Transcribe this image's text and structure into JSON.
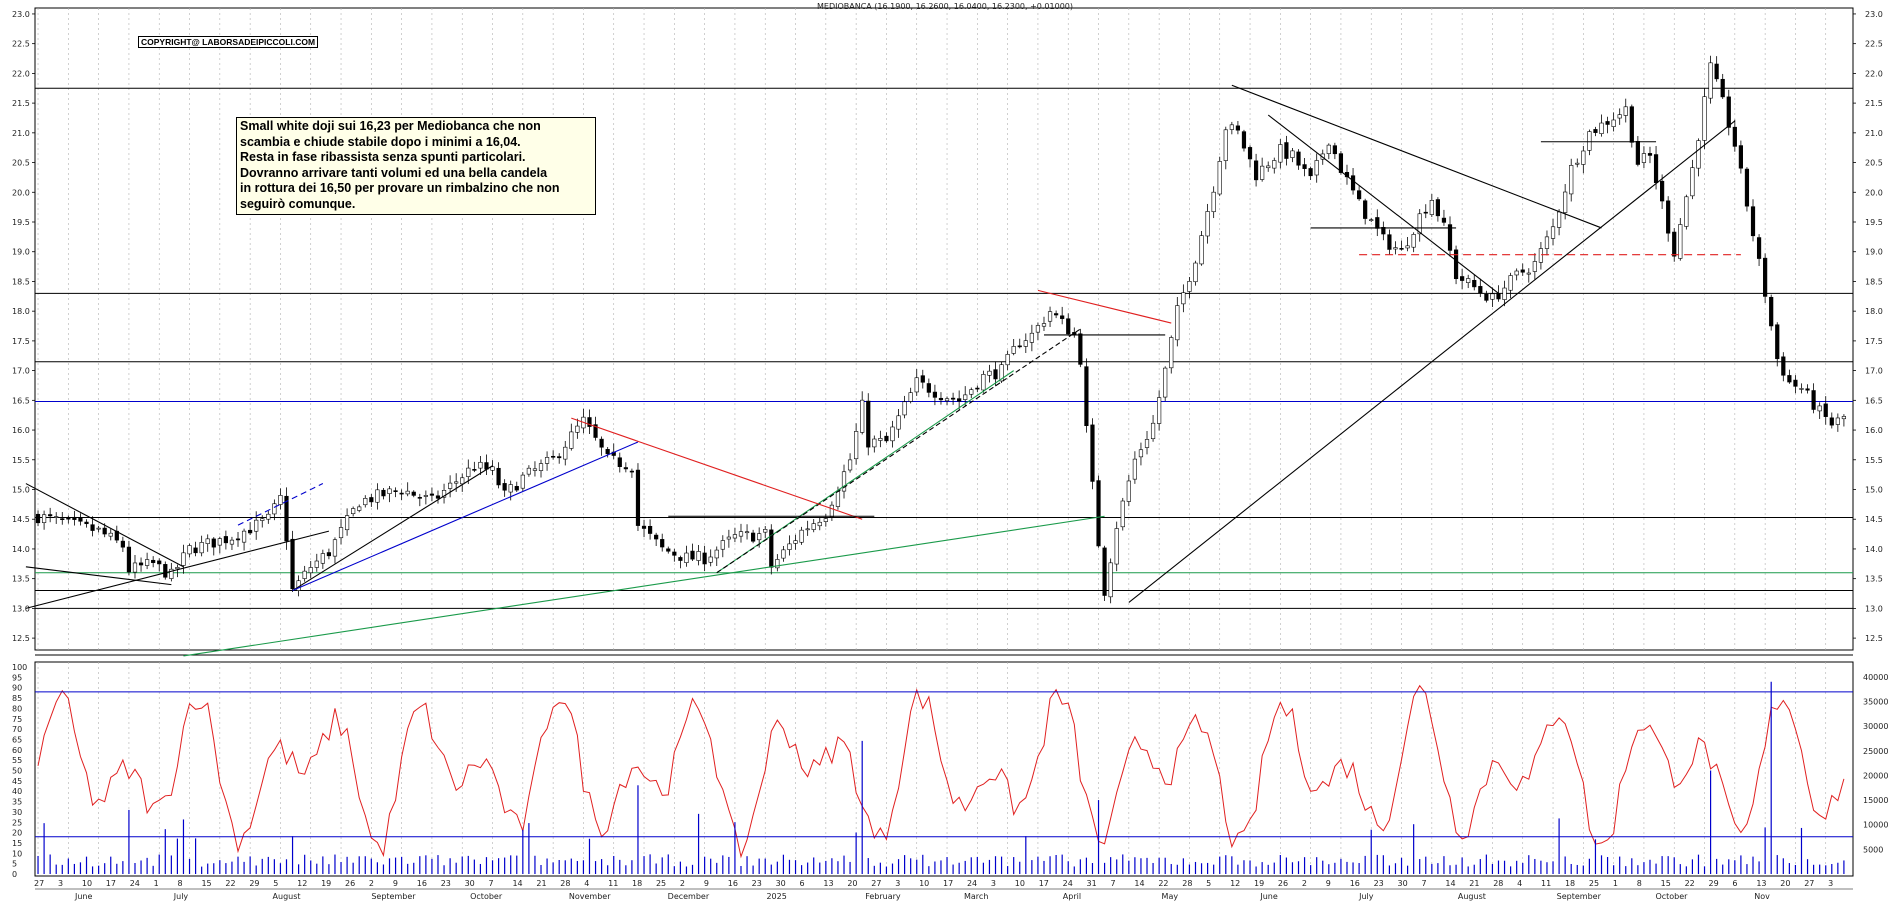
{
  "header": {
    "title": "MEDIOBANCA (16.1900, 16.2600, 16.0400, 16.2300, +0.01000)",
    "copyright": "COPYRIGHT@ LABORSADEIPICCOLI.COM"
  },
  "comment": {
    "lines": [
      "Small white doji sui 16,23 per Mediobanca che non",
      "scambia e chiude stabile dopo i minimi a 16,04.",
      "Resta in fase ribassista senza spunti particolari.",
      "Dovranno arrivare tanti volumi ed una bella candela",
      "in rottura dei 16,50 per provare un rimbalzino che non",
      "seguirò comunque."
    ]
  },
  "colors": {
    "up_candle": "#ffffff",
    "down_candle": "#000000",
    "support_line": "#000000",
    "horizontal_blue": "#0000cc",
    "trend_green": "#1a9a4a",
    "trend_red": "#e02020",
    "oscillator": "#e02020",
    "volume": "#0000cc",
    "grid": "#b0b0b0"
  },
  "chart_data": [
    {
      "type": "candlestick",
      "title": "MEDIOBANCA (16.1900, 16.2600, 16.0400, 16.2300, +0.01000)",
      "ylim": [
        12.3,
        23.1
      ],
      "y_ticks": [
        "23.0",
        "22.5",
        "22.0",
        "21.5",
        "21.0",
        "20.5",
        "20.0",
        "19.5",
        "19.0",
        "18.5",
        "18.0",
        "17.5",
        "17.0",
        "16.5",
        "16.0",
        "15.5",
        "15.0",
        "14.5",
        "14.0",
        "13.5",
        "13.0",
        "12.5"
      ],
      "last_candle": {
        "open": 16.19,
        "high": 16.26,
        "low": 16.04,
        "close": 16.23,
        "change": 0.01
      },
      "price_path": [
        [
          0,
          14.55
        ],
        [
          10,
          14.3
        ],
        [
          14,
          14.05
        ],
        [
          15,
          13.65
        ],
        [
          19,
          13.75
        ],
        [
          22,
          13.55
        ],
        [
          25,
          14.0
        ],
        [
          32,
          14.2
        ],
        [
          38,
          14.5
        ],
        [
          40,
          14.85
        ],
        [
          41,
          14.2
        ],
        [
          42,
          13.3
        ],
        [
          45,
          13.7
        ],
        [
          48,
          13.95
        ],
        [
          53,
          14.8
        ],
        [
          60,
          15.0
        ],
        [
          65,
          14.8
        ],
        [
          72,
          15.4
        ],
        [
          75,
          15.3
        ],
        [
          77,
          14.9
        ],
        [
          80,
          15.2
        ],
        [
          85,
          15.5
        ],
        [
          88,
          15.9
        ],
        [
          90,
          16.15
        ],
        [
          94,
          15.5
        ],
        [
          98,
          15.4
        ],
        [
          99,
          14.4
        ],
        [
          103,
          14.0
        ],
        [
          107,
          13.85
        ],
        [
          110,
          13.85
        ],
        [
          115,
          14.2
        ],
        [
          120,
          14.25
        ],
        [
          121,
          13.7
        ],
        [
          126,
          14.3
        ],
        [
          130,
          14.6
        ],
        [
          134,
          15.5
        ],
        [
          136,
          16.4
        ],
        [
          137,
          15.8
        ],
        [
          140,
          15.8
        ],
        [
          145,
          16.8
        ],
        [
          149,
          16.6
        ],
        [
          152,
          16.5
        ],
        [
          156,
          16.9
        ],
        [
          159,
          17.0
        ],
        [
          162,
          17.5
        ],
        [
          164,
          17.6
        ],
        [
          167,
          18.0
        ],
        [
          171,
          17.6
        ],
        [
          172,
          17.2
        ],
        [
          173,
          16.0
        ],
        [
          175,
          14.1
        ],
        [
          176,
          13.3
        ],
        [
          178,
          14.4
        ],
        [
          181,
          15.5
        ],
        [
          184,
          16.1
        ],
        [
          186,
          17.0
        ],
        [
          188,
          18.0
        ],
        [
          191,
          18.9
        ],
        [
          194,
          20.1
        ],
        [
          196,
          21.1
        ],
        [
          198,
          21.0
        ],
        [
          201,
          20.3
        ],
        [
          205,
          20.7
        ],
        [
          207,
          20.6
        ],
        [
          210,
          20.2
        ],
        [
          213,
          20.9
        ],
        [
          215,
          20.4
        ],
        [
          218,
          19.8
        ],
        [
          222,
          19.2
        ],
        [
          225,
          19.0
        ],
        [
          228,
          19.6
        ],
        [
          230,
          19.9
        ],
        [
          232,
          19.4
        ],
        [
          234,
          18.6
        ],
        [
          237,
          18.4
        ],
        [
          240,
          18.2
        ],
        [
          244,
          18.6
        ],
        [
          247,
          18.8
        ],
        [
          250,
          19.4
        ],
        [
          253,
          20.4
        ],
        [
          256,
          21.0
        ],
        [
          259,
          21.2
        ],
        [
          262,
          21.4
        ],
        [
          264,
          20.5
        ],
        [
          266,
          20.6
        ],
        [
          268,
          19.8
        ],
        [
          270,
          19.0
        ],
        [
          273,
          20.4
        ],
        [
          276,
          22.1
        ],
        [
          278,
          21.5
        ],
        [
          280,
          20.8
        ],
        [
          283,
          19.3
        ],
        [
          285,
          18.3
        ],
        [
          287,
          17.2
        ],
        [
          289,
          16.8
        ],
        [
          291,
          16.7
        ],
        [
          294,
          16.3
        ],
        [
          296,
          16.1
        ],
        [
          298,
          16.2
        ]
      ],
      "horizontal_levels": [
        {
          "price": 21.75,
          "color": "black"
        },
        {
          "price": 18.3,
          "color": "black"
        },
        {
          "price": 17.15,
          "color": "black"
        },
        {
          "price": 16.48,
          "color": "blue"
        },
        {
          "price": 14.53,
          "color": "black"
        },
        {
          "price": 13.6,
          "color": "green"
        },
        {
          "price": 13.3,
          "color": "black"
        },
        {
          "price": 13.0,
          "color": "black"
        }
      ],
      "x_tick_labels": [
        "27",
        "3",
        "10",
        "17",
        "24",
        "1",
        "8",
        "15",
        "22",
        "29",
        "5",
        "12",
        "19",
        "26",
        "2",
        "9",
        "16",
        "23",
        "30",
        "7",
        "14",
        "21",
        "28",
        "4",
        "11",
        "18",
        "25",
        "2",
        "9",
        "16",
        "23",
        "30",
        "6",
        "13",
        "20",
        "27",
        "3",
        "10",
        "17",
        "24",
        "3",
        "10",
        "17",
        "24",
        "31",
        "7",
        "14",
        "22",
        "28",
        "5",
        "12",
        "19",
        "26",
        "2",
        "9",
        "16",
        "23",
        "30",
        "7",
        "14",
        "21",
        "28",
        "4",
        "11",
        "18",
        "25",
        "1",
        "8",
        "15",
        "22",
        "29",
        "6",
        "13",
        "20",
        "27",
        "3"
      ],
      "month_labels": [
        "June",
        "July",
        "August",
        "September",
        "October",
        "November",
        "December",
        "2025",
        "February",
        "March",
        "April",
        "May",
        "June",
        "July",
        "August",
        "September",
        "October",
        "Nov"
      ]
    },
    {
      "type": "line",
      "name": "oscillator",
      "ylim": [
        0,
        100
      ],
      "y_ticks": [
        "100",
        "95",
        "90",
        "85",
        "80",
        "75",
        "70",
        "65",
        "60",
        "55",
        "50",
        "45",
        "40",
        "35",
        "30",
        "25",
        "20",
        "15",
        "10",
        "5",
        "0"
      ],
      "levels": [
        88,
        18
      ]
    },
    {
      "type": "bar",
      "name": "volume",
      "ylim": [
        0,
        42000
      ],
      "y_ticks": [
        "40000",
        "35000",
        "30000",
        "25000",
        "20000",
        "15000",
        "10000",
        "5000"
      ]
    }
  ]
}
